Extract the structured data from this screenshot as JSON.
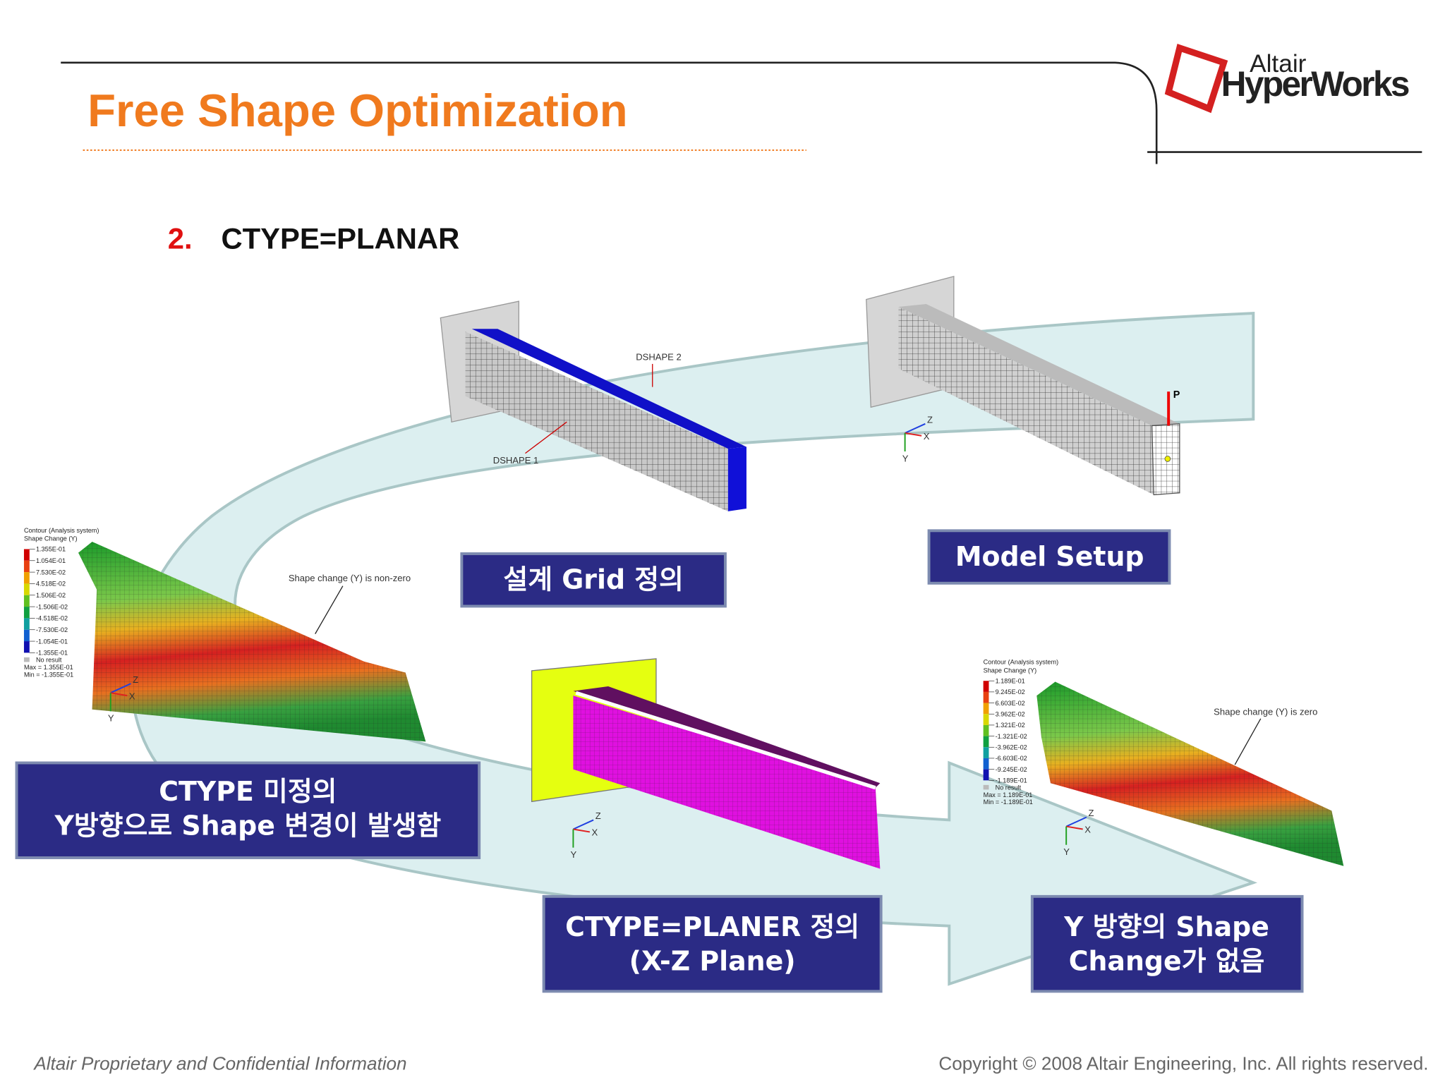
{
  "header": {
    "title": "Free Shape Optimization",
    "logo_brand": "Altair",
    "logo_product": "HyperWorks"
  },
  "section": {
    "number": "2.",
    "title": "CTYPE=PLANAR"
  },
  "boxes": {
    "design_grid": [
      "설계 Grid 정의"
    ],
    "model_setup": [
      "Model Setup"
    ],
    "ctype_undefined": [
      "CTYPE 미정의",
      "Y방향으로 Shape 변경이 발생함"
    ],
    "ctype_planer": [
      "CTYPE=PLANER 정의",
      "(X-Z Plane)"
    ],
    "no_change": [
      "Y 방향의 Shape",
      "Change가 없음"
    ]
  },
  "annotations": {
    "dshape_2": "DSHAPE 2",
    "dshape_1": "DSHAPE 1",
    "load": "P",
    "non_zero": "Shape change (Y) is non-zero",
    "zero": "Shape change (Y) is zero"
  },
  "triad": [
    "Z",
    "X",
    "Y"
  ],
  "legend_left": {
    "title": [
      "Contour (Analysis system)",
      "Shape Change (Y)"
    ],
    "values": [
      "1.355E-01",
      "1.054E-01",
      "7.530E-02",
      "4.518E-02",
      "1.506E-02",
      "-1.506E-02",
      "-4.518E-02",
      "-7.530E-02",
      "-1.054E-01",
      "-1.355E-01"
    ],
    "footer": [
      "No result",
      "Max = 1.355E-01",
      "Min = -1.355E-01"
    ]
  },
  "legend_right": {
    "title": [
      "Contour (Analysis system)",
      "Shape Change (Y)"
    ],
    "values": [
      "1.189E-01",
      "9.245E-02",
      "6.603E-02",
      "3.962E-02",
      "1.321E-02",
      "-1.321E-02",
      "-3.962E-02",
      "-6.603E-02",
      "-9.245E-02",
      "-1.189E-01"
    ],
    "footer": [
      "No result",
      "Max = 1.189E-01",
      "Min = -1.189E-01"
    ]
  },
  "footer": {
    "left": "Altair Proprietary and Confidential Information",
    "right": "Copyright © 2008 Altair Engineering, Inc. All rights reserved."
  }
}
